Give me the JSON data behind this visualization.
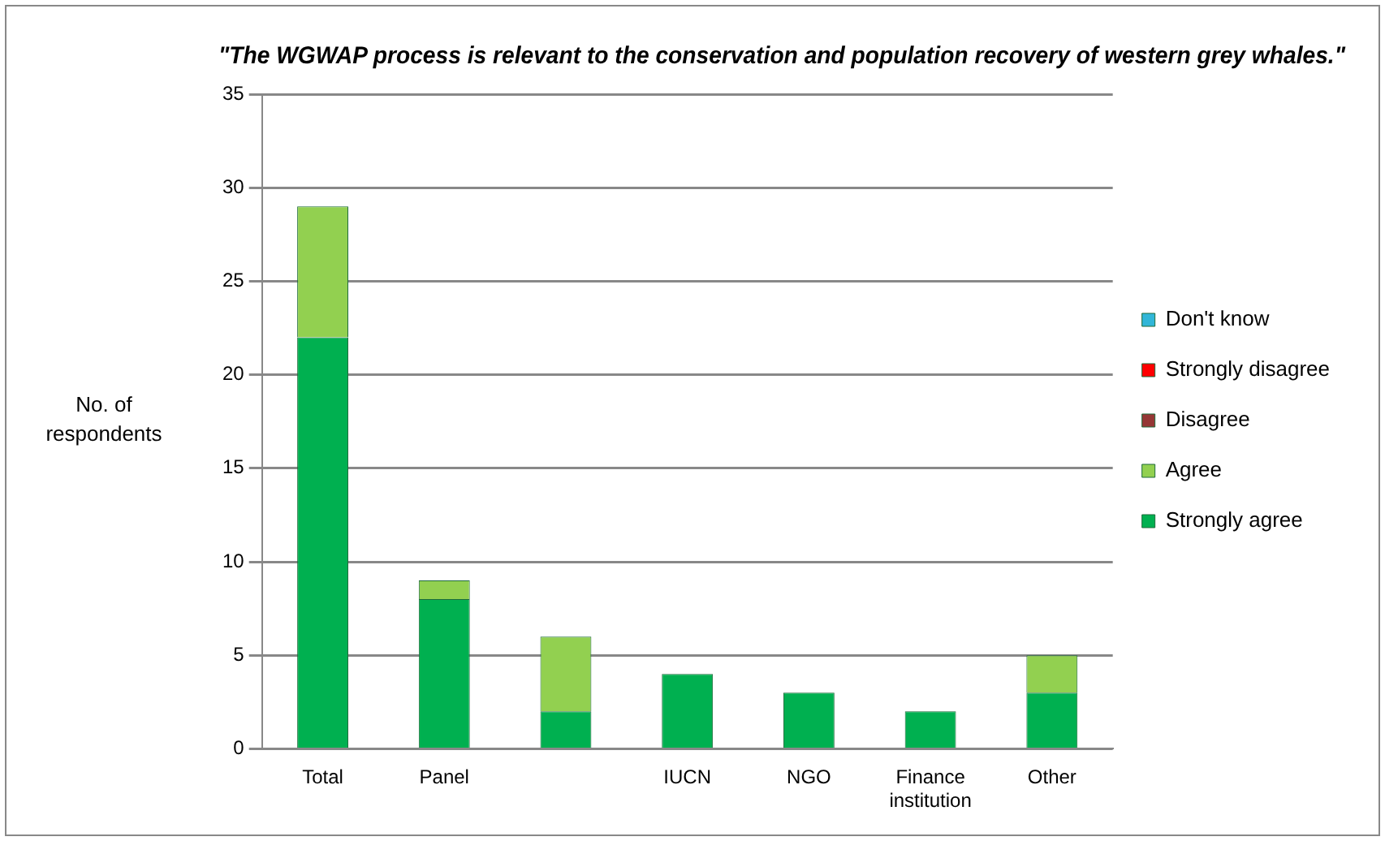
{
  "chart_data": {
    "type": "bar",
    "title": "\"The WGWAP process is relevant to the conservation and population recovery of western grey whales.\"",
    "ylabel": "No. of respondents",
    "categories": [
      "Total",
      "Panel",
      null,
      "IUCN",
      "NGO",
      "Finance institution",
      "Other"
    ],
    "stacked": true,
    "series": [
      {
        "name": "Strongly agree",
        "color": "#00b050",
        "values": [
          22,
          8,
          2,
          4,
          3,
          2,
          3
        ]
      },
      {
        "name": "Agree",
        "color": "#92d050",
        "values": [
          7,
          1,
          4,
          0,
          0,
          0,
          2
        ]
      },
      {
        "name": "Disagree",
        "color": "#953735",
        "values": [
          0,
          0,
          0,
          0,
          0,
          0,
          0
        ]
      },
      {
        "name": "Strongly disagree",
        "color": "#ff0000",
        "values": [
          0,
          0,
          0,
          0,
          0,
          0,
          0
        ]
      },
      {
        "name": "Don't know",
        "color": "#31b6d8",
        "values": [
          0,
          0,
          0,
          0,
          0,
          0,
          0
        ]
      }
    ],
    "ylim": [
      0,
      35
    ],
    "yticks": [
      0,
      5,
      10,
      15,
      20,
      25,
      30,
      35
    ],
    "grid": "y",
    "legend": "right"
  }
}
